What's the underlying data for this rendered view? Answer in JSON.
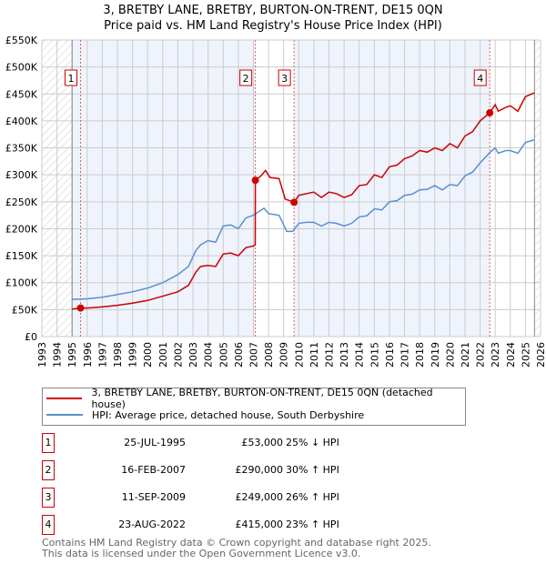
{
  "title_line1": "3, BRETBY LANE, BRETBY, BURTON-ON-TRENT, DE15 0QN",
  "title_line2": "Price paid vs. HM Land Registry's House Price Index (HPI)",
  "colors": {
    "property": "#cc0000",
    "hpi": "#5b8fd0",
    "shade": "#eef3fc"
  },
  "chart_data": {
    "type": "line",
    "xlim": [
      1993,
      2026
    ],
    "ylim": [
      0,
      550000
    ],
    "x_ticks": [
      "1993",
      "1994",
      "1995",
      "1996",
      "1997",
      "1998",
      "1999",
      "2000",
      "2001",
      "2002",
      "2003",
      "2004",
      "2005",
      "2006",
      "2007",
      "2008",
      "2009",
      "2010",
      "2011",
      "2012",
      "2013",
      "2014",
      "2015",
      "2016",
      "2017",
      "2018",
      "2019",
      "2020",
      "2021",
      "2022",
      "2023",
      "2024",
      "2025",
      "2026"
    ],
    "y_ticks": [
      {
        "v": 0,
        "label": "£0"
      },
      {
        "v": 50000,
        "label": "£50K"
      },
      {
        "v": 100000,
        "label": "£100K"
      },
      {
        "v": 150000,
        "label": "£150K"
      },
      {
        "v": 200000,
        "label": "£200K"
      },
      {
        "v": 250000,
        "label": "£250K"
      },
      {
        "v": 300000,
        "label": "£300K"
      },
      {
        "v": 350000,
        "label": "£350K"
      },
      {
        "v": 400000,
        "label": "£400K"
      },
      {
        "v": 450000,
        "label": "£450K"
      },
      {
        "v": 500000,
        "label": "£500K"
      },
      {
        "v": 550000,
        "label": "£550K"
      }
    ],
    "data_start": 1995.0,
    "data_end": 2025.6,
    "series": [
      {
        "name": "3, BRETBY LANE, BRETBY, BURTON-ON-TRENT, DE15 0QN (detached house)",
        "color": "#cc0000",
        "x": [
          1995.0,
          1995.56,
          1996,
          1997,
          1998,
          1999,
          2000,
          2001,
          2002,
          2002.7,
          2003.2,
          2003.5,
          2004,
          2004.5,
          2005,
          2005.5,
          2006,
          2006.5,
          2007,
          2007.12,
          2007.13,
          2007.5,
          2007.8,
          2008.1,
          2008.7,
          2009.1,
          2009.7,
          2010,
          2010.5,
          2011,
          2011.5,
          2012,
          2012.5,
          2013,
          2013.5,
          2014,
          2014.5,
          2015,
          2015.5,
          2016,
          2016.5,
          2017,
          2017.5,
          2018,
          2018.5,
          2019,
          2019.5,
          2020,
          2020.5,
          2021,
          2021.5,
          2022,
          2022.64,
          2023,
          2023.2,
          2023.7,
          2024,
          2024.5,
          2025,
          2025.6
        ],
        "y": [
          51000,
          53000,
          53000,
          55000,
          58000,
          62000,
          67000,
          75000,
          83000,
          95000,
          120000,
          130000,
          132000,
          130000,
          153000,
          155000,
          150000,
          165000,
          168000,
          170000,
          290000,
          298000,
          308000,
          295000,
          293000,
          255000,
          249000,
          262000,
          265000,
          268000,
          258000,
          268000,
          265000,
          258000,
          263000,
          280000,
          282000,
          300000,
          295000,
          315000,
          318000,
          330000,
          335000,
          345000,
          342000,
          350000,
          345000,
          358000,
          350000,
          372000,
          380000,
          400000,
          415000,
          430000,
          418000,
          425000,
          428000,
          418000,
          445000,
          452000
        ]
      },
      {
        "name": "HPI: Average price, detached house, South Derbyshire",
        "color": "#5b8fd0",
        "x": [
          1995.0,
          1996,
          1997,
          1998,
          1999,
          2000,
          2001,
          2002,
          2002.7,
          2003.2,
          2003.5,
          2004,
          2004.5,
          2005,
          2005.5,
          2006,
          2006.5,
          2007,
          2007.7,
          2008,
          2008.7,
          2009.2,
          2009.6,
          2010,
          2010.5,
          2011,
          2011.5,
          2012,
          2012.5,
          2013,
          2013.5,
          2014,
          2014.5,
          2015,
          2015.5,
          2016,
          2016.5,
          2017,
          2017.5,
          2018,
          2018.5,
          2019,
          2019.5,
          2020,
          2020.5,
          2021,
          2021.5,
          2022,
          2022.6,
          2023,
          2023.2,
          2023.7,
          2024,
          2024.5,
          2025,
          2025.6
        ],
        "y": [
          69000,
          70000,
          73000,
          78000,
          83000,
          90000,
          100000,
          115000,
          130000,
          160000,
          170000,
          178000,
          175000,
          205000,
          207000,
          200000,
          220000,
          225000,
          238000,
          228000,
          225000,
          195000,
          195000,
          210000,
          212000,
          212000,
          205000,
          212000,
          210000,
          205000,
          210000,
          222000,
          224000,
          237000,
          235000,
          250000,
          252000,
          262000,
          264000,
          272000,
          273000,
          280000,
          272000,
          282000,
          280000,
          298000,
          305000,
          322000,
          340000,
          350000,
          340000,
          345000,
          345000,
          340000,
          360000,
          365000
        ]
      }
    ],
    "sales": [
      {
        "n": "1",
        "x": 1995.56,
        "y": 53000
      },
      {
        "n": "2",
        "x": 2007.13,
        "y": 290000
      },
      {
        "n": "3",
        "x": 2009.69,
        "y": 249000
      },
      {
        "n": "4",
        "x": 2022.64,
        "y": 415000
      }
    ]
  },
  "legend": {
    "property": "3, BRETBY LANE, BRETBY, BURTON-ON-TRENT, DE15 0QN (detached house)",
    "hpi": "HPI: Average price, detached house, South Derbyshire"
  },
  "transactions": [
    {
      "n": "1",
      "date": "25-JUL-1995",
      "price": "£53,000",
      "hpi": "25% ↓ HPI"
    },
    {
      "n": "2",
      "date": "16-FEB-2007",
      "price": "£290,000",
      "hpi": "30% ↑ HPI"
    },
    {
      "n": "3",
      "date": "11-SEP-2009",
      "price": "£249,000",
      "hpi": "26% ↑ HPI"
    },
    {
      "n": "4",
      "date": "23-AUG-2022",
      "price": "£415,000",
      "hpi": "23% ↑ HPI"
    }
  ],
  "footer_line1": "Contains HM Land Registry data © Crown copyright and database right 2025.",
  "footer_line2": "This data is licensed under the Open Government Licence v3.0."
}
